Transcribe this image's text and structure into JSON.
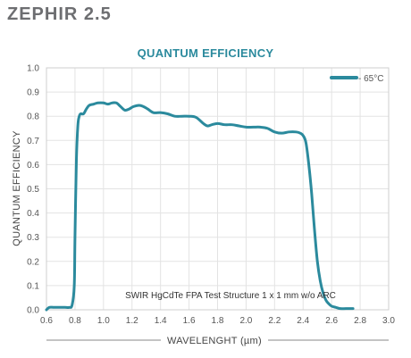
{
  "header": {
    "product": "ZEPHIR 2.5"
  },
  "chart_data": {
    "type": "line",
    "title": "QUANTUM EFFICIENCY",
    "xlabel": "WAVELENGHT (µm)",
    "ylabel": "QUANTUM EFFICIENCY",
    "xlim": [
      0.6,
      3.0
    ],
    "ylim": [
      0.0,
      1.0
    ],
    "xticks": [
      "0.6",
      "0.8",
      "1.0",
      "1.2",
      "1.4",
      "1.6",
      "1.8",
      "2.0",
      "2.2",
      "2.4",
      "2.6",
      "2.8",
      "3.0"
    ],
    "yticks": [
      "0.0",
      "0.1",
      "0.2",
      "0.3",
      "0.4",
      "0.5",
      "0.6",
      "0.7",
      "0.8",
      "0.9",
      "1.0"
    ],
    "grid": true,
    "legend_position": "top-right",
    "annotation": "SWIR HgCdTe FPA Test Structure 1 x 1 mm w/o ARC",
    "series": [
      {
        "name": "- 65°C",
        "color": "#2b8a9d",
        "x": [
          0.6,
          0.62,
          0.65,
          0.68,
          0.7,
          0.73,
          0.76,
          0.78,
          0.795,
          0.8,
          0.81,
          0.82,
          0.83,
          0.84,
          0.86,
          0.88,
          0.9,
          0.93,
          0.96,
          1.0,
          1.03,
          1.06,
          1.09,
          1.12,
          1.15,
          1.18,
          1.21,
          1.25,
          1.28,
          1.31,
          1.35,
          1.4,
          1.45,
          1.5,
          1.55,
          1.6,
          1.65,
          1.7,
          1.73,
          1.76,
          1.8,
          1.85,
          1.9,
          1.95,
          2.0,
          2.05,
          2.1,
          2.15,
          2.2,
          2.25,
          2.3,
          2.35,
          2.38,
          2.4,
          2.42,
          2.44,
          2.46,
          2.48,
          2.5,
          2.52,
          2.54,
          2.56,
          2.58,
          2.6,
          2.63,
          2.66,
          2.7,
          2.75
        ],
        "y": [
          0.0,
          0.01,
          0.01,
          0.01,
          0.01,
          0.01,
          0.01,
          0.02,
          0.1,
          0.3,
          0.62,
          0.76,
          0.8,
          0.81,
          0.81,
          0.83,
          0.845,
          0.85,
          0.855,
          0.855,
          0.85,
          0.855,
          0.855,
          0.84,
          0.825,
          0.83,
          0.84,
          0.845,
          0.84,
          0.83,
          0.815,
          0.815,
          0.81,
          0.8,
          0.8,
          0.8,
          0.795,
          0.77,
          0.76,
          0.765,
          0.77,
          0.765,
          0.765,
          0.76,
          0.755,
          0.755,
          0.755,
          0.75,
          0.735,
          0.73,
          0.735,
          0.735,
          0.73,
          0.72,
          0.69,
          0.6,
          0.48,
          0.33,
          0.2,
          0.12,
          0.07,
          0.04,
          0.025,
          0.015,
          0.01,
          0.005,
          0.005,
          0.005
        ]
      }
    ]
  }
}
